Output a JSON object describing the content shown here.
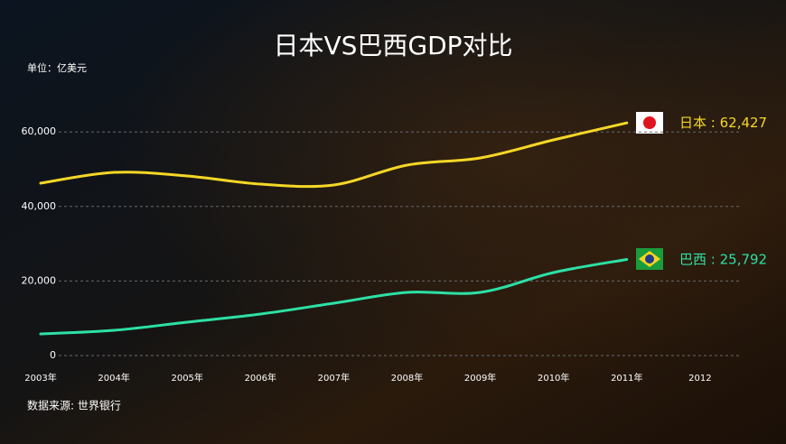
{
  "chart_data": {
    "type": "line",
    "title": "日本VS巴西GDP对比",
    "subtitle": "单位：亿美元",
    "source": "数据来源: 世界银行",
    "label_separator": " : ",
    "categories": [
      "2003年",
      "2004年",
      "2005年",
      "2006年",
      "2007年",
      "2008年",
      "2009年",
      "2010年",
      "2011年",
      "2012"
    ],
    "series": [
      {
        "name": "日本",
        "color": "#f5d726",
        "values": [
          46250,
          49150,
          48180,
          46000,
          45760,
          51090,
          53030,
          57870,
          62427,
          null
        ],
        "value_labels": [
          null,
          null,
          null,
          null,
          null,
          null,
          null,
          null,
          "62,427",
          null
        ]
      },
      {
        "name": "巴西",
        "color": "#2de0a5",
        "values": [
          5810,
          6780,
          8960,
          11140,
          14040,
          16950,
          16950,
          22280,
          25792,
          null
        ],
        "value_labels": [
          null,
          null,
          null,
          null,
          null,
          null,
          null,
          null,
          "25,792",
          null
        ]
      }
    ],
    "ylim": [
      0,
      70000
    ],
    "yticks": [
      0,
      {
        "value": 20000,
        "label": "20,000"
      },
      {
        "value": 40000,
        "label": "40,000"
      },
      {
        "value": 60000,
        "label": "60,000"
      }
    ],
    "grid": true
  }
}
